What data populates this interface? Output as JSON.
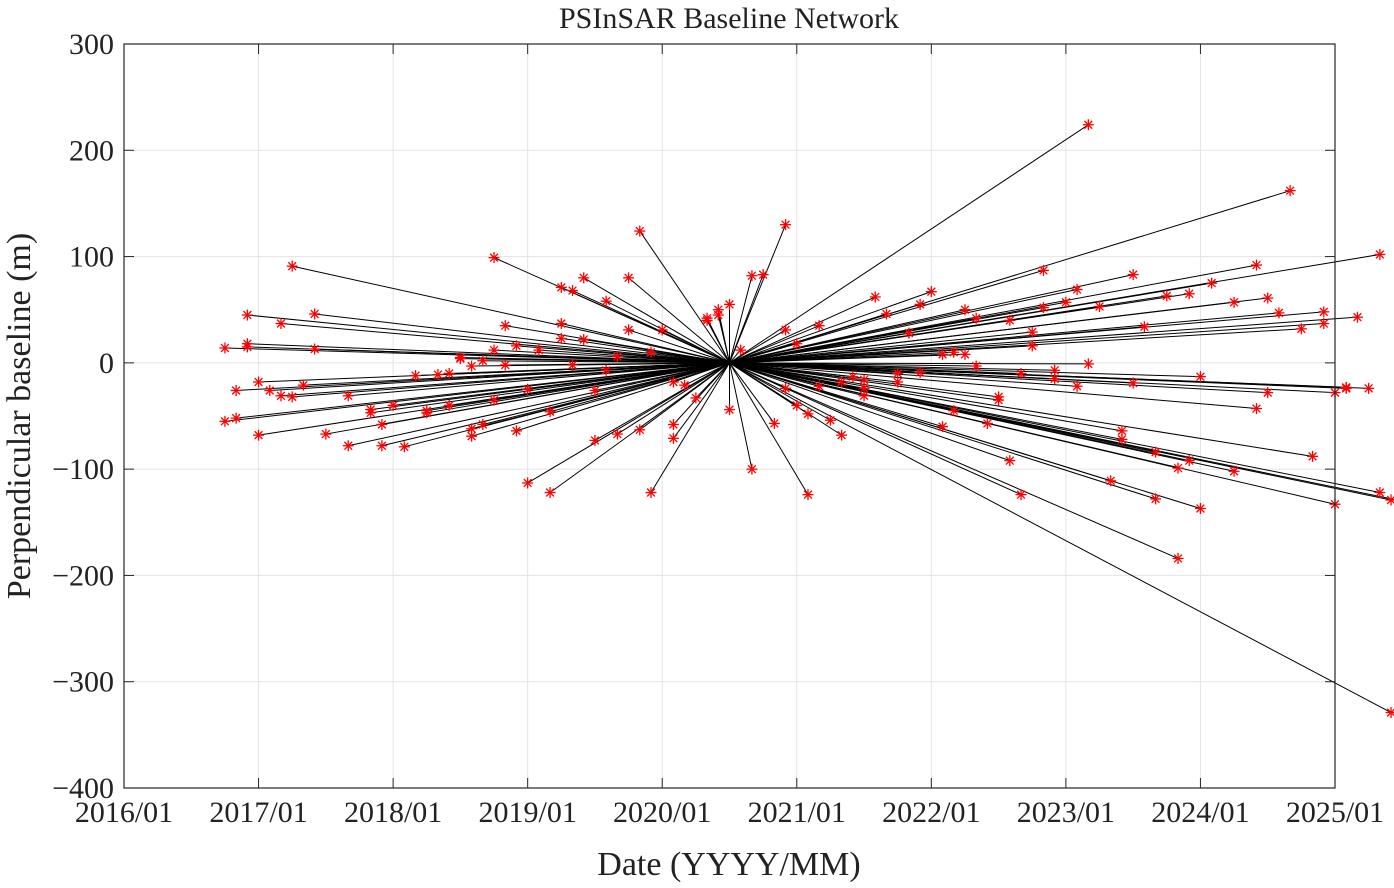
{
  "chart_data": {
    "type": "scatter",
    "title": "PSInSAR Baseline Network",
    "xlabel": "Date (YYYY/MM)",
    "ylabel": "Perpendicular baseline (m)",
    "xlim": [
      "2016/01",
      "2025/01"
    ],
    "ylim": [
      -400,
      300
    ],
    "x_tick_labels": [
      "2016/01",
      "2017/01",
      "2018/01",
      "2019/01",
      "2020/01",
      "2021/01",
      "2022/01",
      "2023/01",
      "2024/01",
      "2025/01"
    ],
    "y_tick_values": [
      300,
      200,
      100,
      0,
      -100,
      -200,
      -300,
      -400
    ],
    "y_tick_labels": [
      "300",
      "200",
      "100",
      "0",
      "−100",
      "−200",
      "−300",
      "−400"
    ],
    "grid": true,
    "reference": {
      "date": "2020/07",
      "bperp": 0
    },
    "marker": {
      "symbol": "*",
      "color": "#ff0000"
    },
    "line_color": "#000000",
    "points": [
      {
        "date": "2016/10",
        "bperp": 14
      },
      {
        "date": "2016/10",
        "bperp": -55
      },
      {
        "date": "2016/11",
        "bperp": -52
      },
      {
        "date": "2016/11",
        "bperp": -26
      },
      {
        "date": "2016/12",
        "bperp": 15
      },
      {
        "date": "2016/12",
        "bperp": 45
      },
      {
        "date": "2016/12",
        "bperp": 18
      },
      {
        "date": "2017/01",
        "bperp": -18
      },
      {
        "date": "2017/01",
        "bperp": -68
      },
      {
        "date": "2017/02",
        "bperp": -26
      },
      {
        "date": "2017/03",
        "bperp": -31
      },
      {
        "date": "2017/03",
        "bperp": 37
      },
      {
        "date": "2017/04",
        "bperp": 91
      },
      {
        "date": "2017/04",
        "bperp": -32
      },
      {
        "date": "2017/05",
        "bperp": -21
      },
      {
        "date": "2017/06",
        "bperp": 46
      },
      {
        "date": "2017/06",
        "bperp": 13
      },
      {
        "date": "2017/07",
        "bperp": -67
      },
      {
        "date": "2017/09",
        "bperp": -78
      },
      {
        "date": "2017/09",
        "bperp": -31
      },
      {
        "date": "2017/11",
        "bperp": -47
      },
      {
        "date": "2017/11",
        "bperp": -44
      },
      {
        "date": "2017/12",
        "bperp": -78
      },
      {
        "date": "2017/12",
        "bperp": -58
      },
      {
        "date": "2018/01",
        "bperp": -40
      },
      {
        "date": "2018/02",
        "bperp": -79
      },
      {
        "date": "2018/03",
        "bperp": -12
      },
      {
        "date": "2018/04",
        "bperp": -47
      },
      {
        "date": "2018/04",
        "bperp": -45
      },
      {
        "date": "2018/05",
        "bperp": -11
      },
      {
        "date": "2018/06",
        "bperp": -10
      },
      {
        "date": "2018/06",
        "bperp": -40
      },
      {
        "date": "2018/07",
        "bperp": 5
      },
      {
        "date": "2018/07",
        "bperp": 4
      },
      {
        "date": "2018/08",
        "bperp": -69
      },
      {
        "date": "2018/08",
        "bperp": -3
      },
      {
        "date": "2018/08",
        "bperp": -62
      },
      {
        "date": "2018/09",
        "bperp": -58
      },
      {
        "date": "2018/09",
        "bperp": 2
      },
      {
        "date": "2018/10",
        "bperp": 99
      },
      {
        "date": "2018/10",
        "bperp": 12
      },
      {
        "date": "2018/10",
        "bperp": -35
      },
      {
        "date": "2018/11",
        "bperp": -2
      },
      {
        "date": "2018/11",
        "bperp": 35
      },
      {
        "date": "2018/12",
        "bperp": 16
      },
      {
        "date": "2018/12",
        "bperp": -64
      },
      {
        "date": "2019/01",
        "bperp": -113
      },
      {
        "date": "2019/01",
        "bperp": -25
      },
      {
        "date": "2019/02",
        "bperp": 12
      },
      {
        "date": "2019/03",
        "bperp": -122
      },
      {
        "date": "2019/03",
        "bperp": -46
      },
      {
        "date": "2019/04",
        "bperp": 37
      },
      {
        "date": "2019/04",
        "bperp": 23
      },
      {
        "date": "2019/04",
        "bperp": 71
      },
      {
        "date": "2019/05",
        "bperp": -2
      },
      {
        "date": "2019/05",
        "bperp": 68
      },
      {
        "date": "2019/06",
        "bperp": 80
      },
      {
        "date": "2019/06",
        "bperp": 22
      },
      {
        "date": "2019/07",
        "bperp": -26
      },
      {
        "date": "2019/07",
        "bperp": -73
      },
      {
        "date": "2019/08",
        "bperp": -7
      },
      {
        "date": "2019/08",
        "bperp": 58
      },
      {
        "date": "2019/09",
        "bperp": 6
      },
      {
        "date": "2019/09",
        "bperp": -67
      },
      {
        "date": "2019/10",
        "bperp": 31
      },
      {
        "date": "2019/10",
        "bperp": 80
      },
      {
        "date": "2019/11",
        "bperp": 124
      },
      {
        "date": "2019/11",
        "bperp": -63
      },
      {
        "date": "2019/12",
        "bperp": -122
      },
      {
        "date": "2019/12",
        "bperp": 10
      },
      {
        "date": "2020/01",
        "bperp": 31
      },
      {
        "date": "2020/02",
        "bperp": -58
      },
      {
        "date": "2020/02",
        "bperp": -18
      },
      {
        "date": "2020/02",
        "bperp": -71
      },
      {
        "date": "2020/03",
        "bperp": -21
      },
      {
        "date": "2020/04",
        "bperp": -33
      },
      {
        "date": "2020/05",
        "bperp": 40
      },
      {
        "date": "2020/05",
        "bperp": 42
      },
      {
        "date": "2020/06",
        "bperp": 45
      },
      {
        "date": "2020/06",
        "bperp": 50
      },
      {
        "date": "2020/07",
        "bperp": 55
      },
      {
        "date": "2020/07",
        "bperp": -44
      },
      {
        "date": "2020/08",
        "bperp": 12
      },
      {
        "date": "2020/09",
        "bperp": -100
      },
      {
        "date": "2020/09",
        "bperp": 82
      },
      {
        "date": "2020/10",
        "bperp": 83
      },
      {
        "date": "2020/11",
        "bperp": -57
      },
      {
        "date": "2020/12",
        "bperp": -24
      },
      {
        "date": "2020/12",
        "bperp": 31
      },
      {
        "date": "2020/12",
        "bperp": 130
      },
      {
        "date": "2021/01",
        "bperp": 18
      },
      {
        "date": "2021/01",
        "bperp": -40
      },
      {
        "date": "2021/02",
        "bperp": -48
      },
      {
        "date": "2021/02",
        "bperp": -124
      },
      {
        "date": "2021/03",
        "bperp": 35
      },
      {
        "date": "2021/03",
        "bperp": -22
      },
      {
        "date": "2021/04",
        "bperp": -54
      },
      {
        "date": "2021/05",
        "bperp": -68
      },
      {
        "date": "2021/05",
        "bperp": -18
      },
      {
        "date": "2021/06",
        "bperp": -13
      },
      {
        "date": "2021/07",
        "bperp": -16
      },
      {
        "date": "2021/07",
        "bperp": -24
      },
      {
        "date": "2021/07",
        "bperp": -31
      },
      {
        "date": "2021/08",
        "bperp": 62
      },
      {
        "date": "2021/09",
        "bperp": 46
      },
      {
        "date": "2021/10",
        "bperp": -18
      },
      {
        "date": "2021/10",
        "bperp": -10
      },
      {
        "date": "2021/11",
        "bperp": 28
      },
      {
        "date": "2021/12",
        "bperp": 55
      },
      {
        "date": "2021/12",
        "bperp": -9
      },
      {
        "date": "2022/01",
        "bperp": 67
      },
      {
        "date": "2022/02",
        "bperp": 8
      },
      {
        "date": "2022/02",
        "bperp": -60
      },
      {
        "date": "2022/03",
        "bperp": 10
      },
      {
        "date": "2022/03",
        "bperp": -45
      },
      {
        "date": "2022/04",
        "bperp": 8
      },
      {
        "date": "2022/04",
        "bperp": 50
      },
      {
        "date": "2022/05",
        "bperp": 42
      },
      {
        "date": "2022/05",
        "bperp": -3
      },
      {
        "date": "2022/06",
        "bperp": -57
      },
      {
        "date": "2022/07",
        "bperp": -35
      },
      {
        "date": "2022/07",
        "bperp": -32
      },
      {
        "date": "2022/08",
        "bperp": 40
      },
      {
        "date": "2022/08",
        "bperp": -92
      },
      {
        "date": "2022/09",
        "bperp": -124
      },
      {
        "date": "2022/09",
        "bperp": -10
      },
      {
        "date": "2022/10",
        "bperp": 29
      },
      {
        "date": "2022/10",
        "bperp": 16
      },
      {
        "date": "2022/11",
        "bperp": 87
      },
      {
        "date": "2022/11",
        "bperp": 52
      },
      {
        "date": "2022/12",
        "bperp": -15
      },
      {
        "date": "2022/12",
        "bperp": -7
      },
      {
        "date": "2023/01",
        "bperp": 57
      },
      {
        "date": "2023/02",
        "bperp": -22
      },
      {
        "date": "2023/02",
        "bperp": 69
      },
      {
        "date": "2023/03",
        "bperp": -1
      },
      {
        "date": "2023/03",
        "bperp": 224
      },
      {
        "date": "2023/04",
        "bperp": 53
      },
      {
        "date": "2023/05",
        "bperp": -111
      },
      {
        "date": "2023/06",
        "bperp": -64
      },
      {
        "date": "2023/06",
        "bperp": -72
      },
      {
        "date": "2023/07",
        "bperp": -19
      },
      {
        "date": "2023/07",
        "bperp": 83
      },
      {
        "date": "2023/08",
        "bperp": 34
      },
      {
        "date": "2023/09",
        "bperp": -128
      },
      {
        "date": "2023/09",
        "bperp": -84
      },
      {
        "date": "2023/10",
        "bperp": 63
      },
      {
        "date": "2023/11",
        "bperp": -184
      },
      {
        "date": "2023/11",
        "bperp": -99
      },
      {
        "date": "2023/12",
        "bperp": -92
      },
      {
        "date": "2023/12",
        "bperp": 65
      },
      {
        "date": "2024/01",
        "bperp": -137
      },
      {
        "date": "2024/01",
        "bperp": -13
      },
      {
        "date": "2024/02",
        "bperp": 75
      },
      {
        "date": "2024/04",
        "bperp": 57
      },
      {
        "date": "2024/04",
        "bperp": -102
      },
      {
        "date": "2024/06",
        "bperp": -43
      },
      {
        "date": "2024/06",
        "bperp": 92
      },
      {
        "date": "2024/07",
        "bperp": 61
      },
      {
        "date": "2024/07",
        "bperp": -28
      },
      {
        "date": "2024/08",
        "bperp": 47
      },
      {
        "date": "2024/09",
        "bperp": 162
      },
      {
        "date": "2024/10",
        "bperp": 32
      },
      {
        "date": "2024/11",
        "bperp": -88
      },
      {
        "date": "2024/12",
        "bperp": 37
      },
      {
        "date": "2024/12",
        "bperp": 48
      },
      {
        "date": "2025/01",
        "bperp": -28
      },
      {
        "date": "2025/01",
        "bperp": -133
      },
      {
        "date": "2025/02",
        "bperp": -24
      },
      {
        "date": "2025/02",
        "bperp": -23
      },
      {
        "date": "2025/03",
        "bperp": 43
      },
      {
        "date": "2025/04",
        "bperp": -24
      },
      {
        "date": "2025/05",
        "bperp": 102
      },
      {
        "date": "2025/05",
        "bperp": -122
      },
      {
        "date": "2025/06",
        "bperp": -329
      },
      {
        "date": "2025/06",
        "bperp": -129
      },
      {
        "date": "2025/07",
        "bperp": -130
      }
    ]
  }
}
